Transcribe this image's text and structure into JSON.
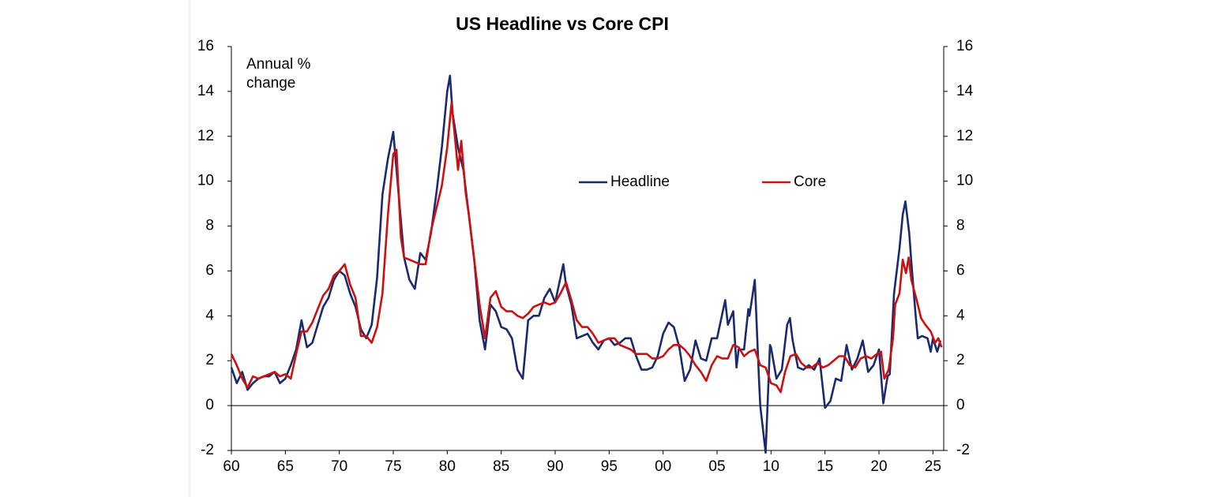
{
  "chart_data": {
    "type": "line",
    "title": "US Headline vs Core CPI",
    "annotation": [
      "Annual %",
      "change"
    ],
    "xlim": [
      1960,
      2026
    ],
    "xticks": [
      {
        "value": 1960,
        "label": "60"
      },
      {
        "value": 1965,
        "label": "65"
      },
      {
        "value": 1970,
        "label": "70"
      },
      {
        "value": 1975,
        "label": "75"
      },
      {
        "value": 1980,
        "label": "80"
      },
      {
        "value": 1985,
        "label": "85"
      },
      {
        "value": 1990,
        "label": "90"
      },
      {
        "value": 1995,
        "label": "95"
      },
      {
        "value": 2000,
        "label": "00"
      },
      {
        "value": 2005,
        "label": "05"
      },
      {
        "value": 2010,
        "label": "10"
      },
      {
        "value": 2015,
        "label": "15"
      },
      {
        "value": 2020,
        "label": "20"
      },
      {
        "value": 2025,
        "label": "25"
      }
    ],
    "ylim": [
      -2,
      16
    ],
    "yticks": [
      -2,
      0,
      2,
      4,
      6,
      8,
      10,
      12,
      14,
      16
    ],
    "y2lim": [
      -2,
      16
    ],
    "y2ticks": [
      -2,
      0,
      2,
      4,
      6,
      8,
      10,
      12,
      14,
      16
    ],
    "grid": false,
    "series": [
      {
        "name": "Headline",
        "color": "#1b2a6e",
        "x": [
          1960,
          1960.5,
          1961,
          1961.5,
          1962,
          1962.5,
          1963,
          1963.5,
          1964,
          1964.5,
          1965,
          1965.5,
          1966,
          1966.5,
          1967,
          1967.5,
          1968,
          1968.5,
          1969,
          1969.5,
          1970,
          1970.5,
          1971,
          1971.5,
          1972,
          1972.5,
          1973,
          1973.5,
          1974,
          1974.5,
          1975,
          1975.5,
          1976,
          1976.5,
          1977,
          1977.5,
          1978,
          1978.5,
          1979,
          1979.5,
          1980,
          1980.25,
          1980.5,
          1981,
          1981.5,
          1982,
          1982.5,
          1983,
          1983.5,
          1984,
          1984.5,
          1985,
          1985.5,
          1986,
          1986.5,
          1987,
          1987.5,
          1988,
          1988.5,
          1989,
          1989.5,
          1990,
          1990.75,
          1991,
          1991.5,
          1992,
          1992.5,
          1993,
          1993.5,
          1994,
          1994.5,
          1995,
          1995.5,
          1996,
          1996.5,
          1997,
          1997.5,
          1998,
          1998.5,
          1999,
          1999.5,
          2000,
          2000.5,
          2001,
          2001.5,
          2002,
          2002.5,
          2003,
          2003.5,
          2004,
          2004.5,
          2005,
          2005.75,
          2006,
          2006.5,
          2006.8,
          2007,
          2007.5,
          2007.9,
          2008,
          2008.5,
          2008.9,
          2009,
          2009.5,
          2009.9,
          2010,
          2010.5,
          2011,
          2011.5,
          2011.75,
          2012,
          2012.5,
          2013,
          2013.5,
          2014,
          2014.5,
          2015,
          2015.5,
          2016,
          2016.5,
          2017,
          2017.5,
          2018,
          2018.5,
          2019,
          2019.5,
          2020,
          2020.4,
          2020.8,
          2021,
          2021.4,
          2021.9,
          2022.2,
          2022.45,
          2022.8,
          2023,
          2023.4,
          2023.6,
          2024,
          2024.5,
          2024.8,
          2025,
          2025.4,
          2025.7
        ],
        "values": [
          1.7,
          1.0,
          1.5,
          0.7,
          1.0,
          1.2,
          1.3,
          1.3,
          1.5,
          1.0,
          1.2,
          1.8,
          2.5,
          3.8,
          2.6,
          2.8,
          3.6,
          4.4,
          4.8,
          5.6,
          6.0,
          5.8,
          5.0,
          4.4,
          3.4,
          3.0,
          3.6,
          5.7,
          9.4,
          11.0,
          12.2,
          9.4,
          6.6,
          5.6,
          5.2,
          6.8,
          6.5,
          7.7,
          9.5,
          11.5,
          14.0,
          14.7,
          13.0,
          11.5,
          10.5,
          8.5,
          6.5,
          3.8,
          2.5,
          4.5,
          4.2,
          3.5,
          3.4,
          3.0,
          1.6,
          1.2,
          3.8,
          4.0,
          4.0,
          4.8,
          5.2,
          4.6,
          6.3,
          5.4,
          4.5,
          3.0,
          3.1,
          3.2,
          2.8,
          2.5,
          2.9,
          3.0,
          2.7,
          2.8,
          3.0,
          3.0,
          2.2,
          1.6,
          1.6,
          1.7,
          2.2,
          3.2,
          3.7,
          3.5,
          2.6,
          1.1,
          1.6,
          2.9,
          2.1,
          2.0,
          3.0,
          3.0,
          4.7,
          3.6,
          4.2,
          1.7,
          2.5,
          2.5,
          4.3,
          4.0,
          5.6,
          1.0,
          0.0,
          -2.1,
          2.7,
          2.6,
          1.2,
          1.6,
          3.6,
          3.9,
          2.9,
          1.7,
          1.6,
          1.8,
          1.6,
          2.1,
          -0.1,
          0.2,
          1.2,
          1.1,
          2.7,
          1.6,
          2.1,
          2.9,
          1.5,
          1.8,
          2.5,
          0.1,
          1.3,
          1.4,
          5.0,
          7.0,
          8.5,
          9.1,
          7.7,
          6.4,
          4.0,
          3.0,
          3.1,
          3.0,
          2.4,
          3.0,
          2.4,
          2.9
        ]
      },
      {
        "name": "Core",
        "color": "#cc1010",
        "x": [
          1960,
          1960.5,
          1961,
          1961.5,
          1962,
          1962.5,
          1963,
          1963.5,
          1964,
          1964.5,
          1965,
          1965.5,
          1966,
          1966.5,
          1967,
          1967.5,
          1968,
          1968.5,
          1969,
          1969.5,
          1970,
          1970.5,
          1971,
          1971.5,
          1972,
          1972.5,
          1973,
          1973.5,
          1974,
          1974.5,
          1975,
          1975.3,
          1975.7,
          1976,
          1976.5,
          1977,
          1977.5,
          1978,
          1978.5,
          1979,
          1979.5,
          1980,
          1980.4,
          1980.8,
          1981,
          1981.3,
          1981.7,
          1982,
          1982.5,
          1983,
          1983.5,
          1984,
          1984.5,
          1985,
          1985.5,
          1986,
          1986.5,
          1987,
          1987.5,
          1988,
          1988.5,
          1989,
          1989.5,
          1990,
          1990.5,
          1991,
          1991.5,
          1992,
          1992.5,
          1993,
          1993.5,
          1994,
          1994.5,
          1995,
          1995.5,
          1996,
          1996.5,
          1997,
          1997.5,
          1998,
          1998.5,
          1999,
          1999.5,
          2000,
          2000.5,
          2001,
          2001.5,
          2002,
          2002.5,
          2003,
          2003.5,
          2004,
          2004.5,
          2005,
          2005.5,
          2006,
          2006.5,
          2007,
          2007.5,
          2008,
          2008.5,
          2009,
          2009.5,
          2010,
          2010.5,
          2010.9,
          2011.3,
          2011.8,
          2012.3,
          2012.8,
          2013.3,
          2013.8,
          2014.3,
          2014.8,
          2015.3,
          2015.8,
          2016.3,
          2016.8,
          2017.3,
          2017.8,
          2018.3,
          2018.8,
          2019.3,
          2019.8,
          2020.2,
          2020.5,
          2020.9,
          2021.3,
          2021.5,
          2021.9,
          2022.2,
          2022.5,
          2022.75,
          2023,
          2023.5,
          2023.9,
          2024.3,
          2024.8,
          2025.2,
          2025.5,
          2025.8
        ],
        "values": [
          2.3,
          1.8,
          1.2,
          0.8,
          1.3,
          1.2,
          1.3,
          1.4,
          1.5,
          1.3,
          1.4,
          1.2,
          2.3,
          3.3,
          3.3,
          3.7,
          4.3,
          4.9,
          5.2,
          5.8,
          6.0,
          6.3,
          5.4,
          4.8,
          3.1,
          3.1,
          2.8,
          3.5,
          5.0,
          8.5,
          11.2,
          11.4,
          7.5,
          6.6,
          6.5,
          6.4,
          6.3,
          6.3,
          7.8,
          8.8,
          9.8,
          11.5,
          13.5,
          11.5,
          10.5,
          11.8,
          9.5,
          8.5,
          6.5,
          4.5,
          3.0,
          4.8,
          5.1,
          4.4,
          4.2,
          4.2,
          4.0,
          3.9,
          4.1,
          4.4,
          4.5,
          4.6,
          4.5,
          4.6,
          5.0,
          5.5,
          4.7,
          3.8,
          3.5,
          3.5,
          3.2,
          2.8,
          2.9,
          3.0,
          3.0,
          2.7,
          2.6,
          2.5,
          2.3,
          2.3,
          2.3,
          2.1,
          2.1,
          2.2,
          2.5,
          2.7,
          2.7,
          2.5,
          2.2,
          1.8,
          1.5,
          1.1,
          1.8,
          2.2,
          2.1,
          2.1,
          2.7,
          2.6,
          2.2,
          2.4,
          2.5,
          1.8,
          1.7,
          1.0,
          0.9,
          0.6,
          1.5,
          2.2,
          2.3,
          1.9,
          1.7,
          1.7,
          1.9,
          1.7,
          1.8,
          2.0,
          2.2,
          2.2,
          1.8,
          1.7,
          2.1,
          2.2,
          2.1,
          2.3,
          2.4,
          1.2,
          1.6,
          3.0,
          4.5,
          5.0,
          6.5,
          5.9,
          6.6,
          5.6,
          4.7,
          3.9,
          3.6,
          3.3,
          2.8,
          3.0,
          2.6
        ]
      }
    ]
  }
}
